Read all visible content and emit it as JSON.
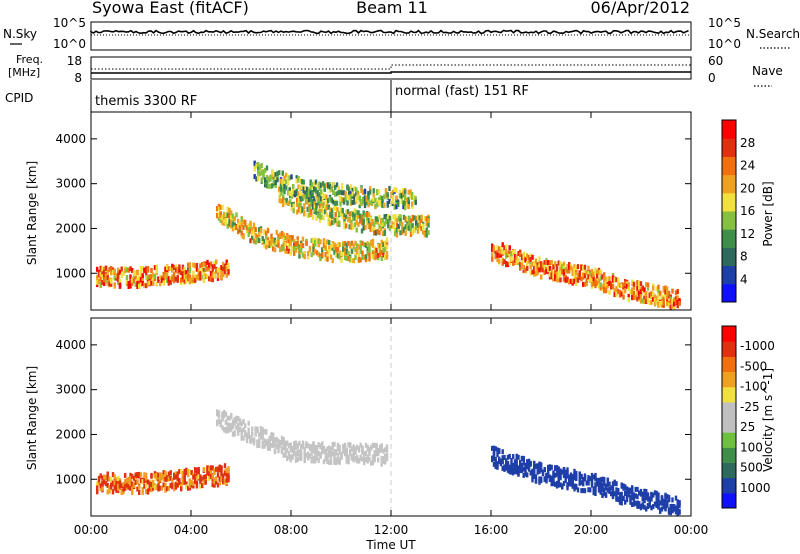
{
  "header": {
    "station": "Syowa East (fitACF)",
    "beam": "Beam 11",
    "date": "06/Apr/2012"
  },
  "noise_panel": {
    "left_label": "N.Sky",
    "right_label": "N.Search",
    "left_ticks": [
      "10^5",
      "10^0"
    ],
    "right_ticks": [
      "10^5",
      "10^0"
    ]
  },
  "freq_panel": {
    "left_label_1": "Freq.",
    "left_label_2": "[MHz]",
    "right_label": "Nave",
    "left_ticks": [
      "18",
      "8"
    ],
    "right_ticks": [
      "60",
      "0"
    ]
  },
  "cpid_panel": {
    "label": "CPID",
    "segments": [
      {
        "start_hour": 0,
        "end_hour": 12,
        "text": "themis 3300 RF"
      },
      {
        "start_hour": 12,
        "end_hour": 24,
        "text": "normal (fast) 151 RF"
      }
    ]
  },
  "time_axis": {
    "xlabel": "Time UT",
    "tick_labels": [
      "00:00",
      "04:00",
      "08:00",
      "12:00",
      "16:00",
      "20:00",
      "00:00"
    ],
    "tick_hours": [
      0,
      4,
      8,
      12,
      16,
      20,
      24
    ],
    "range_hours": [
      0,
      24
    ]
  },
  "chart_data": [
    {
      "type": "heatmap",
      "name": "power",
      "ylabel": "Slant Range [km]",
      "y_ticks": [
        1000,
        2000,
        3000,
        4000
      ],
      "ylim": [
        180,
        4600
      ],
      "xlim_hours": [
        0,
        24
      ],
      "colorbar": {
        "label": "Power [dB]",
        "ticks": [
          "4",
          "8",
          "12",
          "16",
          "20",
          "24",
          "28"
        ],
        "colors": [
          "#1010ff",
          "#1e3ea8",
          "#2e6a5c",
          "#3f8f4a",
          "#86c040",
          "#f0e040",
          "#f0a020",
          "#f07010",
          "#e03010",
          "#ff0000"
        ]
      },
      "features": [
        {
          "desc": "main arc",
          "hours": [
            5.0,
            6.5,
            8.0,
            10.0,
            11.8
          ],
          "range_km": [
            2350,
            1850,
            1600,
            1450,
            1530
          ],
          "value": 16
        },
        {
          "desc": "upper arc",
          "hours": [
            7.5,
            9.5,
            11.5,
            13.5
          ],
          "range_km": [
            2700,
            2300,
            2050,
            2050
          ],
          "value": 14
        },
        {
          "desc": "top arc",
          "hours": [
            6.5,
            8.5,
            10.5,
            13.0
          ],
          "range_km": [
            3250,
            2850,
            2700,
            2650
          ],
          "value": 11
        },
        {
          "desc": "evening band",
          "hours": [
            16.0,
            18.0,
            20.0,
            21.5,
            23.5
          ],
          "range_km": [
            1500,
            1100,
            900,
            600,
            400
          ],
          "value": 20
        },
        {
          "desc": "morning near range",
          "hours": [
            0.2,
            2.0,
            4.0,
            5.5
          ],
          "range_km": [
            900,
            900,
            1000,
            1100
          ],
          "value": 20
        }
      ]
    },
    {
      "type": "heatmap",
      "name": "velocity",
      "ylabel": "Slant Range [km]",
      "y_ticks": [
        1000,
        2000,
        3000,
        4000
      ],
      "ylim": [
        180,
        4600
      ],
      "xlim_hours": [
        0,
        24
      ],
      "colorbar": {
        "label": "Velocity [m s^-1]",
        "ticks": [
          "1000",
          "500",
          "100",
          "25",
          "-25",
          "-100",
          "-500",
          "-1000"
        ],
        "colors": [
          "#1010ff",
          "#1e3ea8",
          "#2e6a5c",
          "#3f8f4a",
          "#70c040",
          "#c0c0c0",
          "#c0c0c0",
          "#f0e040",
          "#f0a020",
          "#f07010",
          "#e03010",
          "#ff0000"
        ]
      },
      "features": [
        {
          "desc": "ground scatter arcs",
          "hours": [
            5.0,
            8.0,
            11.8
          ],
          "range_km": [
            2350,
            1600,
            1530
          ],
          "value": 0
        },
        {
          "desc": "evening band",
          "hours": [
            16.0,
            18.0,
            20.0,
            21.5,
            23.5
          ],
          "range_km": [
            1500,
            1100,
            900,
            600,
            400
          ],
          "value": 600
        },
        {
          "desc": "morning near range",
          "hours": [
            0.2,
            2.0,
            4.0,
            5.5
          ],
          "range_km": [
            900,
            900,
            1000,
            1100
          ],
          "value": -300
        }
      ]
    }
  ]
}
